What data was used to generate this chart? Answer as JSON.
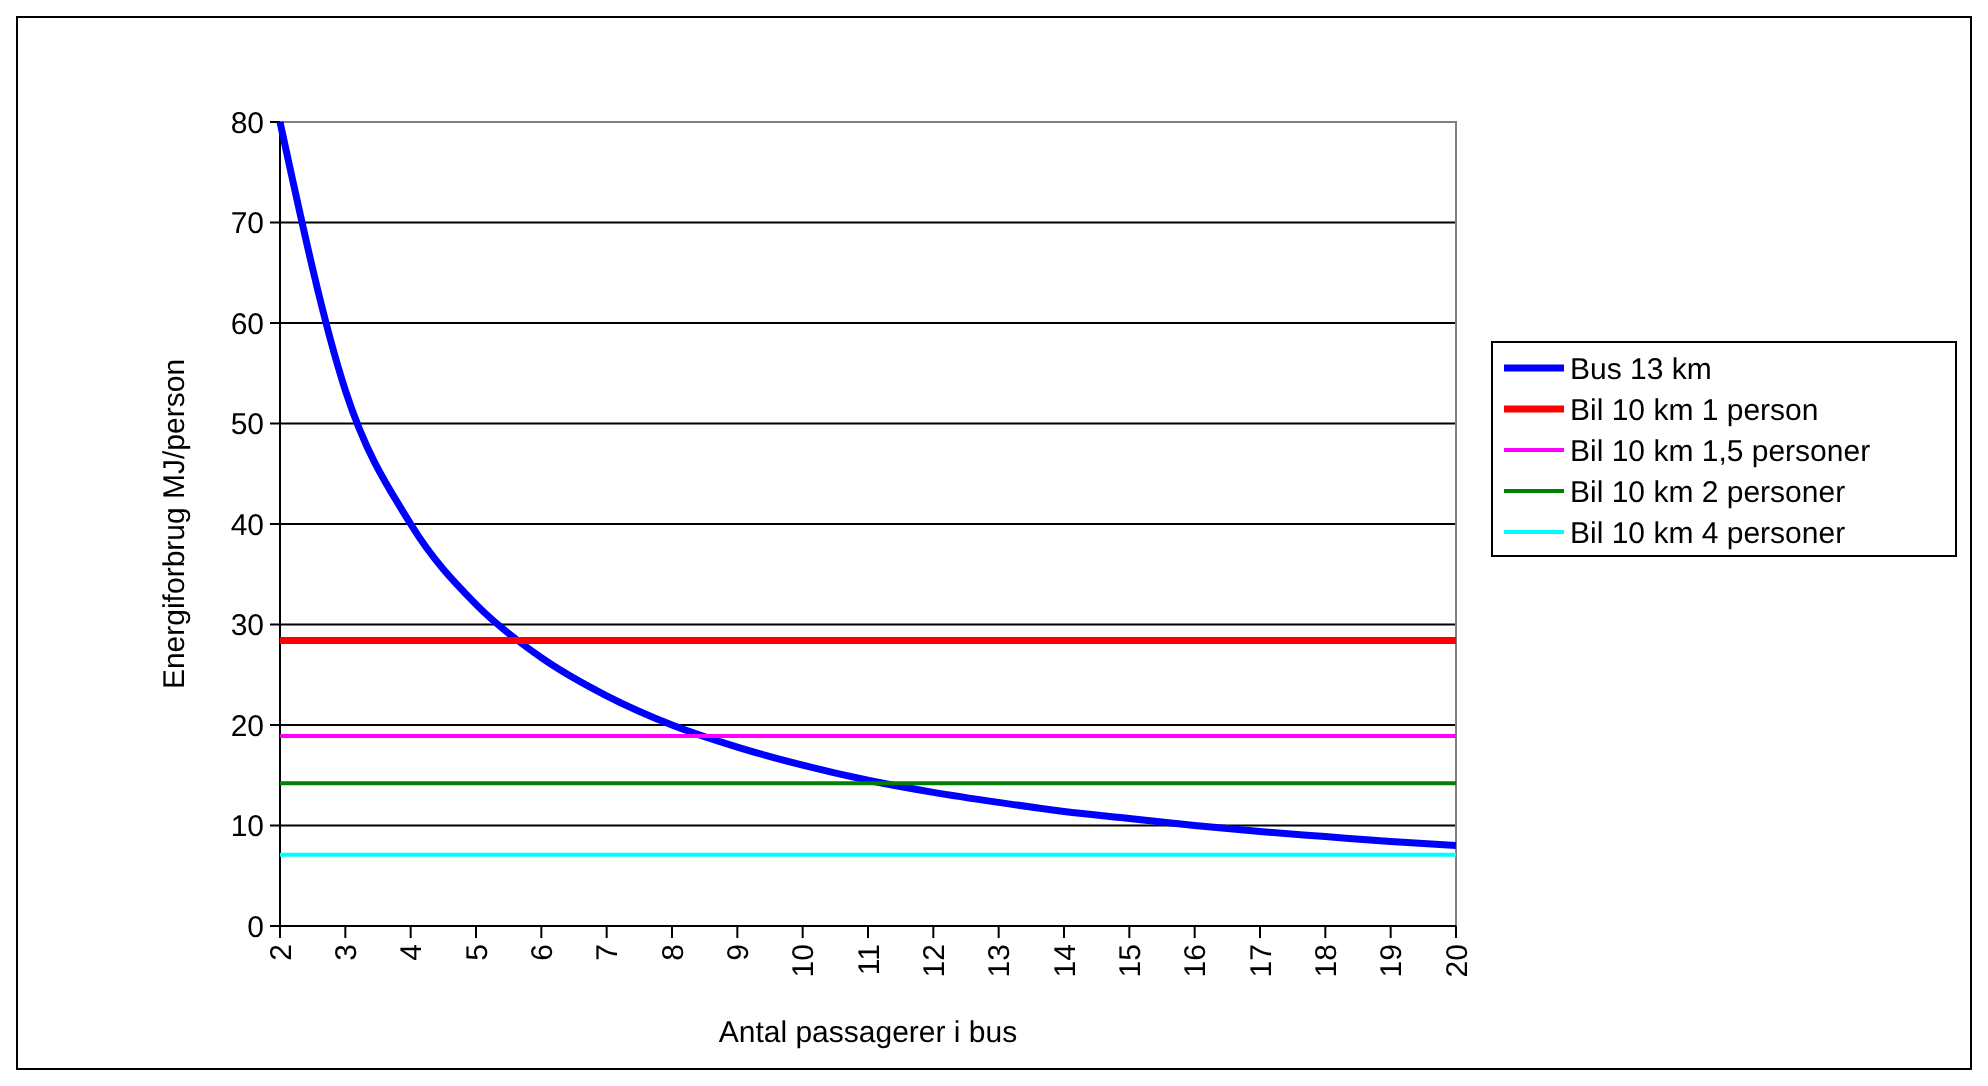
{
  "chart_data": {
    "type": "line",
    "xlabel": "Antal passagerer i bus",
    "ylabel": "Energiforbrug MJ/person",
    "x": [
      2,
      3,
      4,
      5,
      6,
      7,
      8,
      9,
      10,
      11,
      12,
      13,
      14,
      15,
      16,
      17,
      18,
      19,
      20
    ],
    "series": [
      {
        "name": "Bus 13 km",
        "color": "#0000ff",
        "values": [
          80,
          53.3,
          40,
          32,
          26.7,
          22.9,
          20,
          17.8,
          16,
          14.5,
          13.3,
          12.3,
          11.4,
          10.7,
          10,
          9.4,
          8.9,
          8.4,
          8
        ]
      },
      {
        "name": "Bil 10 km 1 person",
        "color": "#ff0000",
        "values": [
          28.4,
          28.4,
          28.4,
          28.4,
          28.4,
          28.4,
          28.4,
          28.4,
          28.4,
          28.4,
          28.4,
          28.4,
          28.4,
          28.4,
          28.4,
          28.4,
          28.4,
          28.4,
          28.4
        ]
      },
      {
        "name": "Bil 10 km 1,5 personer",
        "color": "#ff00ff",
        "values": [
          18.9,
          18.9,
          18.9,
          18.9,
          18.9,
          18.9,
          18.9,
          18.9,
          18.9,
          18.9,
          18.9,
          18.9,
          18.9,
          18.9,
          18.9,
          18.9,
          18.9,
          18.9,
          18.9
        ]
      },
      {
        "name": "Bil 10 km 2 personer",
        "color": "#008000",
        "values": [
          14.2,
          14.2,
          14.2,
          14.2,
          14.2,
          14.2,
          14.2,
          14.2,
          14.2,
          14.2,
          14.2,
          14.2,
          14.2,
          14.2,
          14.2,
          14.2,
          14.2,
          14.2,
          14.2
        ]
      },
      {
        "name": "Bil 10 km 4 personer",
        "color": "#00ffff",
        "values": [
          7.1,
          7.1,
          7.1,
          7.1,
          7.1,
          7.1,
          7.1,
          7.1,
          7.1,
          7.1,
          7.1,
          7.1,
          7.1,
          7.1,
          7.1,
          7.1,
          7.1,
          7.1,
          7.1
        ]
      }
    ],
    "xlim": [
      2,
      20
    ],
    "xticks": [
      2,
      3,
      4,
      5,
      6,
      7,
      8,
      9,
      10,
      11,
      12,
      13,
      14,
      15,
      16,
      17,
      18,
      19,
      20
    ],
    "ylim": [
      0,
      80
    ],
    "yticks": [
      0,
      10,
      20,
      30,
      40,
      50,
      60,
      70,
      80
    ],
    "grid": "y",
    "legend": "right"
  }
}
